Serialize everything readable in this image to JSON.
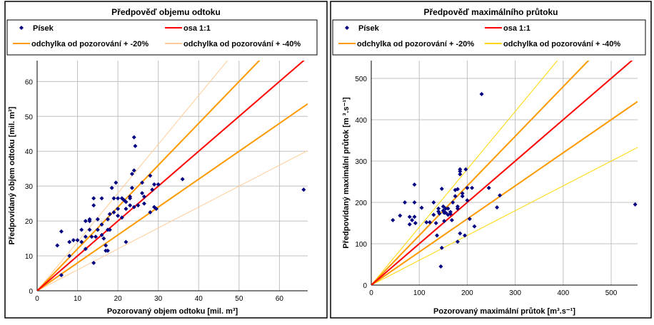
{
  "colors": {
    "points": "#000080",
    "line_1_1": "#ff0000",
    "line_20": "#ff9900",
    "line_40_left": "#ffcc99",
    "line_40_right": "#ffd700",
    "grid": "#c0c0c0"
  },
  "chart_data": [
    {
      "type": "scatter",
      "title": "Předpověď objemu odtoku",
      "xlabel": "Pozorovaný objem odtoku [mil. m³]",
      "ylabel": "Předpovídaný objem odtoku [mil. m³]",
      "xlim": [
        0,
        67
      ],
      "ylim": [
        0,
        66
      ],
      "xticks": [
        0,
        10,
        20,
        30,
        40,
        50,
        60
      ],
      "yticks": [
        0,
        10,
        20,
        30,
        40,
        50,
        60
      ],
      "grid": true,
      "legend_position": "top",
      "legend": [
        "Písek",
        "osa 1:1",
        "odchylka od pozorování + -20%",
        "odchylka od pozorování + -40%"
      ],
      "lines": [
        {
          "name": "osa 1:1",
          "slope": 1
        },
        {
          "name": "odchylka od pozorování + -20%",
          "slopes": [
            1.2,
            0.8
          ]
        },
        {
          "name": "odchylka od pozorování + -40%",
          "slopes": [
            1.4,
            0.6
          ]
        }
      ],
      "series": [
        {
          "name": "Písek",
          "points": [
            [
              5,
              13
            ],
            [
              6,
              17
            ],
            [
              6,
              4.5
            ],
            [
              8,
              10
            ],
            [
              8,
              14
            ],
            [
              9,
              14.5
            ],
            [
              10,
              14.5
            ],
            [
              11,
              14
            ],
            [
              11,
              17.5
            ],
            [
              12,
              12
            ],
            [
              12,
              15.5
            ],
            [
              12,
              20
            ],
            [
              13,
              17.5
            ],
            [
              13,
              20
            ],
            [
              13,
              20.5
            ],
            [
              13.5,
              15.5
            ],
            [
              14,
              26.5
            ],
            [
              14,
              8
            ],
            [
              14,
              24.5
            ],
            [
              14.5,
              15.5
            ],
            [
              15,
              17.5
            ],
            [
              15,
              20.5
            ],
            [
              16,
              16
            ],
            [
              16,
              26.5
            ],
            [
              16,
              19
            ],
            [
              16.5,
              15
            ],
            [
              17,
              11.5
            ],
            [
              17,
              13
            ],
            [
              17.5,
              11.5
            ],
            [
              17.5,
              17.5
            ],
            [
              17.5,
              20.5
            ],
            [
              18,
              22
            ],
            [
              18,
              17.5
            ],
            [
              18.5,
              29.5
            ],
            [
              19,
              22.5
            ],
            [
              19,
              26.5
            ],
            [
              19.5,
              31
            ],
            [
              20,
              26.5
            ],
            [
              20,
              21.5
            ],
            [
              20,
              23.5
            ],
            [
              21,
              26.5
            ],
            [
              21.5,
              26
            ],
            [
              21,
              21
            ],
            [
              22,
              23.5
            ],
            [
              22,
              14
            ],
            [
              22,
              25.5
            ],
            [
              23,
              27
            ],
            [
              23,
              24.5
            ],
            [
              23,
              26.5
            ],
            [
              23.5,
              29.5
            ],
            [
              23.5,
              33.5
            ],
            [
              24,
              44
            ],
            [
              24,
              34.5
            ],
            [
              24.3,
              41.5
            ],
            [
              24,
              24
            ],
            [
              25,
              24.5
            ],
            [
              26,
              31
            ],
            [
              26,
              28
            ],
            [
              26.5,
              27
            ],
            [
              26.5,
              25
            ],
            [
              28,
              33
            ],
            [
              28,
              22.5
            ],
            [
              28.5,
              29
            ],
            [
              29,
              24
            ],
            [
              29,
              30.5
            ],
            [
              29.5,
              23.5
            ],
            [
              30,
              30.5
            ],
            [
              36,
              32
            ],
            [
              66,
              29
            ]
          ]
        }
      ]
    },
    {
      "type": "scatter",
      "title": "Předpověď maximálního průtoku",
      "xlabel": "Pozorovaný maximální průtok [m³.s⁻¹]",
      "ylabel": "Předpovídaný maximální průtok [m ³.s⁻¹]",
      "xlim": [
        0,
        555
      ],
      "ylim": [
        0,
        543
      ],
      "xticks": [
        0,
        100,
        200,
        300,
        400,
        500
      ],
      "yticks": [
        0,
        100,
        200,
        300,
        400,
        500
      ],
      "grid": true,
      "legend_position": "top",
      "legend": [
        "Písek",
        "osa 1:1",
        "odchylka od pozorování + -20%",
        "odchylka od pozorování + -40%"
      ],
      "lines": [
        {
          "name": "osa 1:1",
          "slope": 1
        },
        {
          "name": "odchylka od pozorování + -20%",
          "slopes": [
            1.2,
            0.8
          ]
        },
        {
          "name": "odchylka od pozorování + -40%",
          "slopes": [
            1.4,
            0.6
          ]
        }
      ],
      "series": [
        {
          "name": "Písek",
          "points": [
            [
              45,
              157
            ],
            [
              60,
              168
            ],
            [
              70,
              200
            ],
            [
              80,
              165
            ],
            [
              80,
              147
            ],
            [
              85,
              157
            ],
            [
              90,
              243
            ],
            [
              90,
              200
            ],
            [
              90,
              165
            ],
            [
              92,
              150
            ],
            [
              105,
              187
            ],
            [
              115,
              152
            ],
            [
              122,
              152
            ],
            [
              130,
              200
            ],
            [
              130,
              170
            ],
            [
              135,
              150
            ],
            [
              137,
              120
            ],
            [
              140,
              185
            ],
            [
              140,
              178
            ],
            [
              142,
              173
            ],
            [
              145,
              45
            ],
            [
              147,
              90
            ],
            [
              147,
              233
            ],
            [
              150,
              180
            ],
            [
              150,
              190
            ],
            [
              152,
              175
            ],
            [
              152,
              155
            ],
            [
              155,
              185
            ],
            [
              155,
              175
            ],
            [
              160,
              170
            ],
            [
              160,
              185
            ],
            [
              165,
              177
            ],
            [
              165,
              172
            ],
            [
              168,
              157
            ],
            [
              170,
              200
            ],
            [
              175,
              230
            ],
            [
              175,
              215
            ],
            [
              180,
              190
            ],
            [
              180,
              185
            ],
            [
              180,
              232
            ],
            [
              180,
              105
            ],
            [
              185,
              280
            ],
            [
              185,
              275
            ],
            [
              185,
              268
            ],
            [
              185,
              125
            ],
            [
              190,
              215
            ],
            [
              190,
              222
            ],
            [
              195,
              120
            ],
            [
              197,
              280
            ],
            [
              200,
              235
            ],
            [
              200,
              205
            ],
            [
              205,
              160
            ],
            [
              210,
              235
            ],
            [
              215,
              142
            ],
            [
              230,
              462
            ],
            [
              245,
              235
            ],
            [
              262,
              188
            ],
            [
              268,
              217
            ],
            [
              550,
              195
            ]
          ]
        }
      ]
    }
  ]
}
